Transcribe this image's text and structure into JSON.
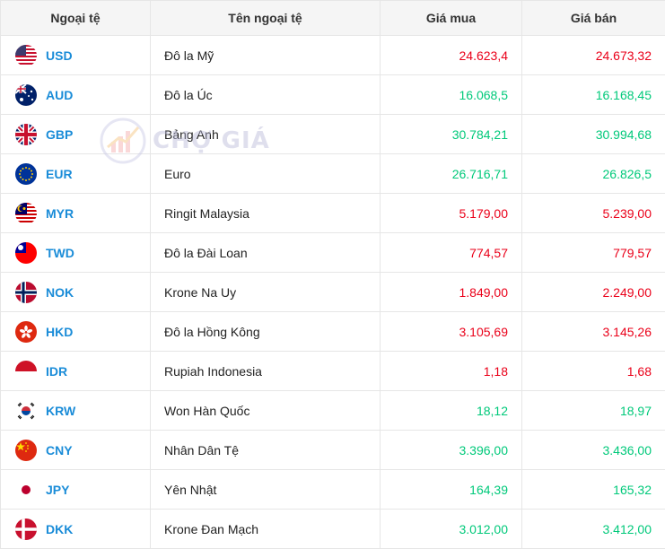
{
  "headers": {
    "code": "Ngoại tệ",
    "name": "Tên ngoại tệ",
    "buy": "Giá mua",
    "sell": "Giá bán"
  },
  "watermark": {
    "text": "CHỢ GIÁ"
  },
  "colors": {
    "up": "#00c97a",
    "down": "#ea0019",
    "code": "#1a8cd8"
  },
  "rows": [
    {
      "flag": "us-flag",
      "code": "USD",
      "name": "Đô la Mỹ",
      "buy": "24.623,4",
      "sell": "24.673,32",
      "trend": "down"
    },
    {
      "flag": "au-flag",
      "code": "AUD",
      "name": "Đô la Úc",
      "buy": "16.068,5",
      "sell": "16.168,45",
      "trend": "up"
    },
    {
      "flag": "gb-flag",
      "code": "GBP",
      "name": "Bảng Anh",
      "buy": "30.784,21",
      "sell": "30.994,68",
      "trend": "up"
    },
    {
      "flag": "eu-flag",
      "code": "EUR",
      "name": "Euro",
      "buy": "26.716,71",
      "sell": "26.826,5",
      "trend": "up"
    },
    {
      "flag": "my-flag",
      "code": "MYR",
      "name": "Ringit Malaysia",
      "buy": "5.179,00",
      "sell": "5.239,00",
      "trend": "down"
    },
    {
      "flag": "tw-flag",
      "code": "TWD",
      "name": "Đô la Đài Loan",
      "buy": "774,57",
      "sell": "779,57",
      "trend": "down"
    },
    {
      "flag": "no-flag",
      "code": "NOK",
      "name": "Krone Na Uy",
      "buy": "1.849,00",
      "sell": "2.249,00",
      "trend": "down"
    },
    {
      "flag": "hk-flag",
      "code": "HKD",
      "name": "Đô la Hồng Kông",
      "buy": "3.105,69",
      "sell": "3.145,26",
      "trend": "down"
    },
    {
      "flag": "id-flag",
      "code": "IDR",
      "name": "Rupiah Indonesia",
      "buy": "1,18",
      "sell": "1,68",
      "trend": "down"
    },
    {
      "flag": "kr-flag",
      "code": "KRW",
      "name": "Won Hàn Quốc",
      "buy": "18,12",
      "sell": "18,97",
      "trend": "up"
    },
    {
      "flag": "cn-flag",
      "code": "CNY",
      "name": "Nhân Dân Tệ",
      "buy": "3.396,00",
      "sell": "3.436,00",
      "trend": "up"
    },
    {
      "flag": "jp-flag",
      "code": "JPY",
      "name": "Yên Nhật",
      "buy": "164,39",
      "sell": "165,32",
      "trend": "up"
    },
    {
      "flag": "dk-flag",
      "code": "DKK",
      "name": "Krone Đan Mạch",
      "buy": "3.012,00",
      "sell": "3.412,00",
      "trend": "up"
    }
  ]
}
